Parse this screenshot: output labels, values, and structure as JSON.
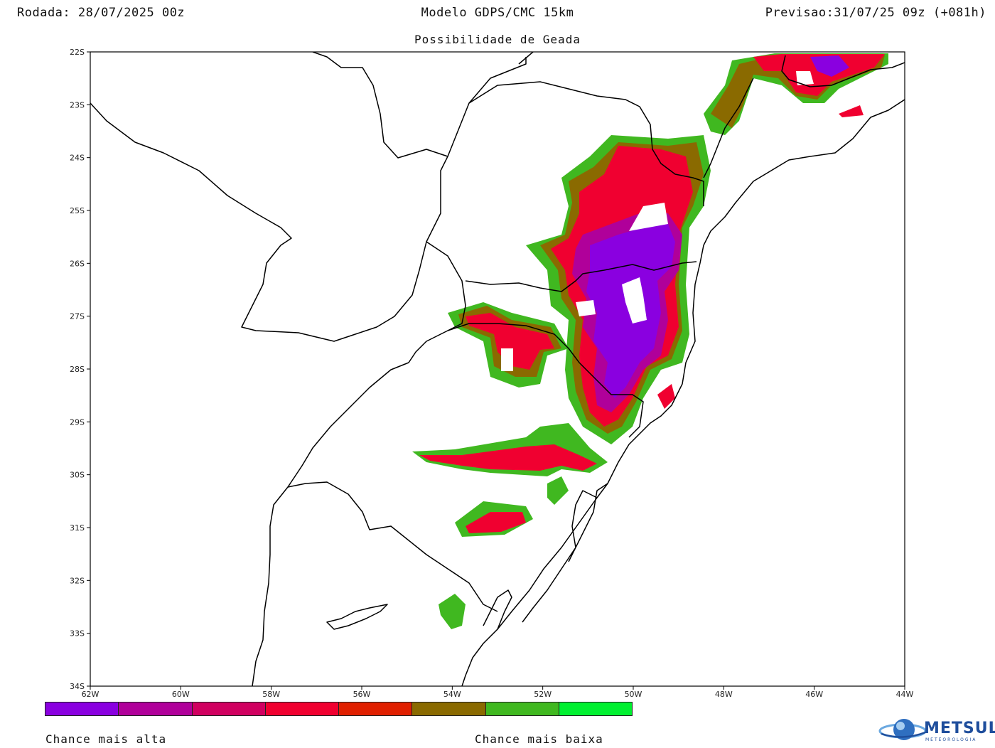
{
  "header": {
    "run": "Rodada: 28/07/2025 00z",
    "model": "Modelo GDPS/CMC 15km",
    "forecast": "Previsao:31/07/25 09z (+081h)",
    "subtitle": "Possibilidade de Geada"
  },
  "axes": {
    "lat_labels": [
      "22S",
      "23S",
      "24S",
      "25S",
      "26S",
      "27S",
      "28S",
      "29S",
      "30S",
      "31S",
      "32S",
      "33S",
      "34S"
    ],
    "lon_labels": [
      "62W",
      "60W",
      "58W",
      "56W",
      "54W",
      "52W",
      "50W",
      "48W",
      "46W",
      "44W"
    ]
  },
  "legend": {
    "colors": [
      "#8a00e0",
      "#b0009a",
      "#d00060",
      "#f00030",
      "#e02000",
      "#8a6a00",
      "#40b820",
      "#00f030"
    ],
    "high_label": "Chance mais alta",
    "low_label": "Chance mais baixa"
  },
  "logo": {
    "name": "METSUL",
    "sub": "METEOROLOGIA",
    "icon": "globe-icon"
  }
}
